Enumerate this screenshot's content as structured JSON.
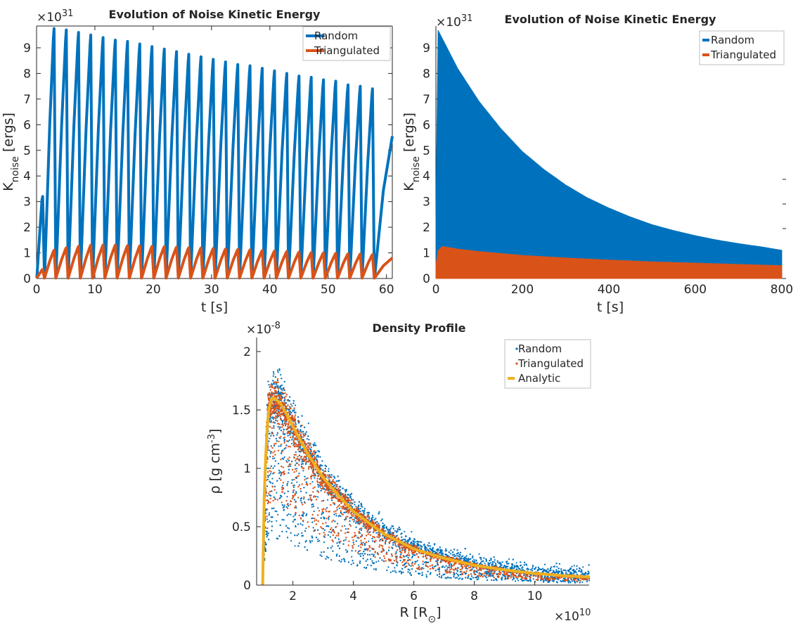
{
  "chart_data": [
    {
      "type": "line",
      "title": "Evolution of Noise Kinetic Energy",
      "xlabel": "t [s]",
      "ylabel": "K_noise [ergs]",
      "ylabel_main": "K",
      "ylabel_sub": "noise",
      "ylabel_unit": " [ergs]",
      "y_multiplier_base": "×10",
      "y_multiplier_exp": "31",
      "xlim": [
        0,
        61
      ],
      "ylim": [
        0,
        9.85
      ],
      "xticks": [
        0,
        10,
        20,
        30,
        40,
        50,
        60
      ],
      "yticks": [
        0,
        1,
        2,
        3,
        4,
        5,
        6,
        7,
        8,
        9
      ],
      "legend_position": "top-right",
      "series": [
        {
          "name": "Random",
          "color": "#0072BD",
          "description": "oscillating pulses, period ~2.1 s",
          "peak_times": [
            1.05,
            3.0,
            5.1,
            7.2,
            9.3,
            11.4,
            13.5,
            15.6,
            17.7,
            19.8,
            21.9,
            24.0,
            26.1,
            28.2,
            30.3,
            32.4,
            34.5,
            36.6,
            38.7,
            40.8,
            42.9,
            45.0,
            47.1,
            49.2,
            51.3,
            53.4,
            55.5,
            57.6
          ],
          "peak_values": [
            3.2,
            9.75,
            9.7,
            9.6,
            9.5,
            9.4,
            9.3,
            9.25,
            9.15,
            9.05,
            8.95,
            8.85,
            8.75,
            8.65,
            8.55,
            8.45,
            8.35,
            8.3,
            8.2,
            8.1,
            8.0,
            7.9,
            7.85,
            7.75,
            7.7,
            7.55,
            7.5,
            7.4
          ],
          "end_value": 5.55
        },
        {
          "name": "Triangulated",
          "color": "#D95319",
          "description": "oscillating pulses, period ~2.1 s",
          "peak_times": [
            1.05,
            3.0,
            5.1,
            7.2,
            9.3,
            11.4,
            13.5,
            15.6,
            17.7,
            19.8,
            21.9,
            24.0,
            26.1,
            28.2,
            30.3,
            32.4,
            34.5,
            36.6,
            38.7,
            40.8,
            42.9,
            45.0,
            47.1,
            49.2,
            51.3,
            53.4,
            55.5,
            57.6
          ],
          "peak_values": [
            0.35,
            1.1,
            1.2,
            1.25,
            1.3,
            1.3,
            1.3,
            1.28,
            1.27,
            1.25,
            1.24,
            1.22,
            1.2,
            1.19,
            1.17,
            1.15,
            1.13,
            1.11,
            1.09,
            1.07,
            1.05,
            1.03,
            1.01,
            1.0,
            0.98,
            0.96,
            0.95,
            0.93
          ],
          "end_value": 0.8
        }
      ]
    },
    {
      "type": "area",
      "title": "Evolution of Noise Kinetic Energy",
      "xlabel": "t [s]",
      "ylabel": "K_noise [ergs]",
      "ylabel_main": "K",
      "ylabel_sub": "noise",
      "ylabel_unit": " [ergs]",
      "y_multiplier_base": "×10",
      "y_multiplier_exp": "31",
      "xlim": [
        0,
        810
      ],
      "ylim": [
        0,
        9.85
      ],
      "xticks": [
        0,
        200,
        400,
        600,
        800
      ],
      "yticks": [
        0,
        1,
        2,
        3,
        4,
        5,
        6,
        7,
        8,
        9
      ],
      "legend_position": "top-right",
      "series": [
        {
          "name": "Random",
          "color": "#0072BD",
          "description": "dense oscillation envelope (max) decaying from ~9.75 to ~1.1",
          "x": [
            0,
            3,
            50,
            100,
            150,
            200,
            250,
            300,
            350,
            400,
            450,
            500,
            550,
            600,
            650,
            700,
            750,
            800
          ],
          "upper": [
            2.3,
            9.75,
            8.2,
            6.9,
            5.85,
            4.95,
            4.25,
            3.65,
            3.15,
            2.75,
            2.4,
            2.1,
            1.87,
            1.67,
            1.5,
            1.36,
            1.24,
            1.1
          ]
        },
        {
          "name": "Triangulated",
          "color": "#D95319",
          "description": "dense oscillation envelope (max) ~1.25 slowly decaying to ~0.5",
          "x": [
            0,
            3,
            15,
            50,
            100,
            200,
            300,
            400,
            500,
            600,
            700,
            800
          ],
          "upper": [
            0.5,
            1.05,
            1.25,
            1.15,
            1.05,
            0.9,
            0.8,
            0.72,
            0.65,
            0.6,
            0.55,
            0.5
          ]
        }
      ]
    },
    {
      "type": "scatter",
      "title": "Density Profile",
      "xlabel": "R [R_⊙]",
      "xlabel_main": "R [R",
      "xlabel_sub": "⊙",
      "xlabel_close": "]",
      "ylabel": "ρ [g cm^-3]",
      "ylabel_main": "ρ [g cm",
      "ylabel_sup": "-3",
      "ylabel_close": "]",
      "x_multiplier_base": "×10",
      "x_multiplier_exp": "10",
      "y_multiplier_base": "×10",
      "y_multiplier_exp": "-8",
      "xlim": [
        0.8,
        11.8
      ],
      "ylim": [
        0,
        2.12
      ],
      "xticks": [
        2,
        4,
        6,
        8,
        10
      ],
      "yticks": [
        0,
        0.5,
        1,
        1.5,
        2
      ],
      "ytick_labels": [
        "0",
        "0.5",
        "1",
        "1.5",
        "2"
      ],
      "legend_position": "top-right",
      "series": [
        {
          "name": "Random",
          "color": "#0072BD",
          "marker": "point",
          "description": "noisy scatter around analytic curve, upper envelope reaching ~2.0 near R=1.3"
        },
        {
          "name": "Triangulated",
          "color": "#D95319",
          "marker": "point",
          "description": "noisy scatter tightly around analytic curve"
        },
        {
          "name": "Analytic",
          "color": "#EDB120",
          "marker": "line",
          "x": [
            1.0,
            1.05,
            1.1,
            1.15,
            1.2,
            1.3,
            1.4,
            1.6,
            1.8,
            2.0,
            2.5,
            3.0,
            3.5,
            4.0,
            5.0,
            6.0,
            7.0,
            8.0,
            9.0,
            10.0,
            11.0,
            11.8
          ],
          "values": [
            0.0,
            0.75,
            1.1,
            1.35,
            1.5,
            1.6,
            1.6,
            1.55,
            1.46,
            1.36,
            1.12,
            0.92,
            0.77,
            0.63,
            0.44,
            0.31,
            0.23,
            0.17,
            0.13,
            0.1,
            0.08,
            0.07
          ]
        }
      ]
    }
  ]
}
